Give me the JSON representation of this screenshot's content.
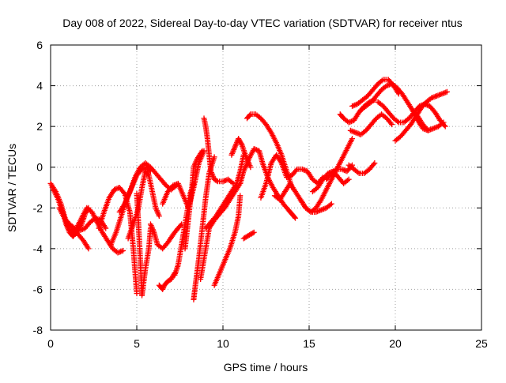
{
  "chart_data": {
    "type": "scatter",
    "title": "Day 008 of 2022, Sidereal Day-to-day VTEC variation (SDTVAR) for receiver ntus",
    "xlabel": "GPS time / hours",
    "ylabel": "SDTVAR / TECUs",
    "xlim": [
      0,
      25
    ],
    "ylim": [
      -8,
      6
    ],
    "x_ticks": [
      0,
      5,
      10,
      15,
      20,
      25
    ],
    "y_ticks": [
      -8,
      -6,
      -4,
      -2,
      0,
      2,
      4,
      6
    ],
    "grid": true,
    "marker": "+",
    "color": "#ff0000",
    "series": [
      {
        "x": [
          0.0,
          0.3,
          0.6,
          0.8,
          1.0,
          1.3,
          1.6,
          1.9,
          2.2
        ],
        "y": [
          -0.8,
          -1.2,
          -1.8,
          -2.4,
          -2.9,
          -3.1,
          -3.3,
          -3.6,
          -4.0
        ]
      },
      {
        "x": [
          0.1,
          0.4,
          0.7,
          0.9,
          1.1,
          1.3,
          1.5,
          1.8,
          2.0,
          2.2
        ],
        "y": [
          -1.0,
          -1.5,
          -2.2,
          -2.8,
          -3.2,
          -3.4,
          -3.2,
          -2.8,
          -2.3,
          -2.0
        ]
      },
      {
        "x": [
          0.5,
          0.8,
          1.1,
          1.4,
          1.7,
          2.0,
          2.3,
          2.6,
          2.9,
          3.2
        ],
        "y": [
          -2.0,
          -2.5,
          -2.8,
          -3.0,
          -3.1,
          -3.0,
          -2.7,
          -2.5,
          -2.6,
          -3.0
        ]
      },
      {
        "x": [
          1.2,
          1.5,
          1.8,
          2.1,
          2.4,
          2.7,
          3.0,
          3.3,
          3.6,
          3.9,
          4.2
        ],
        "y": [
          -3.3,
          -3.0,
          -2.5,
          -2.0,
          -2.2,
          -2.7,
          -3.2,
          -3.6,
          -4.0,
          -4.2,
          -4.1
        ]
      },
      {
        "x": [
          2.8,
          3.1,
          3.4,
          3.7,
          4.0,
          4.3,
          4.6,
          4.8,
          5.0
        ],
        "y": [
          -3.0,
          -2.2,
          -1.5,
          -1.1,
          -1.0,
          -1.3,
          -2.2,
          -4.0,
          -6.2
        ]
      },
      {
        "x": [
          3.5,
          3.8,
          4.1,
          4.4,
          4.7,
          5.0,
          5.3,
          5.6,
          5.8
        ],
        "y": [
          -3.8,
          -3.2,
          -2.4,
          -1.6,
          -1.0,
          -0.4,
          -0.1,
          0.0,
          -0.2
        ]
      },
      {
        "x": [
          4.0,
          4.3,
          4.6,
          4.9,
          5.2,
          5.5,
          5.8,
          6.1,
          6.4,
          6.7,
          7.0,
          7.3
        ],
        "y": [
          -2.2,
          -1.8,
          -1.2,
          -0.5,
          0.0,
          0.2,
          0.0,
          -0.3,
          -0.6,
          -0.9,
          -1.1,
          -0.9
        ]
      },
      {
        "x": [
          4.5,
          4.8,
          5.1,
          5.3,
          5.5,
          5.7,
          5.9,
          6.1,
          6.3
        ],
        "y": [
          -3.5,
          -2.8,
          -2.0,
          -1.0,
          -0.2,
          -0.4,
          -1.2,
          -2.0,
          -2.4
        ]
      },
      {
        "x": [
          5.0,
          5.1,
          5.2,
          5.3,
          5.5,
          5.7,
          5.8
        ],
        "y": [
          -1.3,
          -2.8,
          -4.5,
          -6.3,
          -5.0,
          -4.0,
          -3.0
        ]
      },
      {
        "x": [
          5.8,
          6.0,
          6.2,
          6.5,
          6.8,
          7.2,
          7.6
        ],
        "y": [
          -2.8,
          -3.2,
          -3.8,
          -4.0,
          -3.7,
          -3.2,
          -2.8
        ]
      },
      {
        "x": [
          6.3,
          6.5,
          6.6,
          6.8,
          7.0,
          7.2
        ],
        "y": [
          -5.8,
          -6.0,
          -5.8,
          -5.6,
          -5.5,
          -5.2
        ]
      },
      {
        "x": [
          6.5,
          6.8,
          7.1,
          7.4,
          7.7,
          8.0,
          8.3,
          8.6,
          8.9
        ],
        "y": [
          -1.8,
          -1.2,
          -0.9,
          -0.8,
          -1.4,
          -2.0,
          -1.0,
          0.2,
          0.8
        ]
      },
      {
        "x": [
          7.2,
          7.4,
          7.6,
          7.8,
          8.0,
          8.1,
          8.3
        ],
        "y": [
          -5.3,
          -4.8,
          -3.8,
          -2.8,
          -1.8,
          -1.3,
          -0.8
        ]
      },
      {
        "x": [
          7.8,
          8.0,
          8.2,
          8.3,
          8.5,
          8.8
        ],
        "y": [
          -4.0,
          -2.5,
          -1.0,
          0.0,
          0.4,
          0.8
        ]
      },
      {
        "x": [
          8.3,
          8.4,
          8.6,
          8.8,
          9.0,
          9.2,
          9.5
        ],
        "y": [
          -6.5,
          -5.8,
          -4.5,
          -3.0,
          -1.5,
          -0.3,
          0.5
        ]
      },
      {
        "x": [
          8.9,
          9.0,
          9.1,
          9.2,
          9.3,
          9.5,
          9.7,
          10.0,
          10.3,
          10.6
        ],
        "y": [
          2.4,
          2.0,
          1.4,
          0.6,
          -0.2,
          -0.6,
          -0.7,
          -0.7,
          -0.6,
          -0.8
        ]
      },
      {
        "x": [
          8.7,
          8.9,
          9.2,
          9.5,
          9.8,
          10.1,
          10.4,
          10.7,
          11.0
        ],
        "y": [
          -5.5,
          -4.5,
          -3.0,
          -2.6,
          -2.3,
          -2.0,
          -1.6,
          -1.2,
          -0.8
        ]
      },
      {
        "x": [
          9.0,
          9.3,
          9.6,
          9.9,
          10.2,
          10.5,
          10.8,
          11.0,
          11.2
        ],
        "y": [
          -3.0,
          -2.7,
          -2.4,
          -2.0,
          -1.6,
          -1.2,
          -0.8,
          -0.2,
          0.6
        ]
      },
      {
        "x": [
          9.5,
          9.8,
          10.1,
          10.4,
          10.7,
          10.9,
          11.0
        ],
        "y": [
          -5.8,
          -5.2,
          -4.6,
          -4.0,
          -3.2,
          -2.4,
          -1.4
        ]
      },
      {
        "x": [
          10.5,
          10.7,
          10.9,
          11.1,
          11.3,
          11.6
        ],
        "y": [
          0.6,
          1.0,
          1.4,
          1.1,
          0.6,
          0.0
        ]
      },
      {
        "x": [
          11.0,
          11.2,
          11.5,
          11.8,
          12.1,
          12.3,
          12.6,
          12.9,
          13.2,
          13.5,
          13.8,
          14.0,
          14.2
        ],
        "y": [
          -0.8,
          -0.2,
          0.4,
          0.9,
          0.8,
          0.2,
          -0.5,
          -1.0,
          -1.4,
          -1.8,
          -2.1,
          -2.3,
          -2.5
        ]
      },
      {
        "x": [
          11.2,
          11.4,
          11.6,
          11.8
        ],
        "y": [
          -3.5,
          -3.4,
          -3.3,
          -3.2
        ]
      },
      {
        "x": [
          11.4,
          11.6,
          11.9,
          12.2,
          12.5,
          12.8,
          13.1,
          13.4,
          13.7,
          14.0
        ],
        "y": [
          2.4,
          2.6,
          2.6,
          2.4,
          2.1,
          1.7,
          1.2,
          0.6,
          -0.2,
          -1.0
        ]
      },
      {
        "x": [
          12.2,
          12.5,
          12.8,
          13.1,
          13.4,
          13.7,
          14.0,
          14.3,
          14.6,
          14.9,
          15.2,
          15.5,
          15.8
        ],
        "y": [
          -1.5,
          -0.8,
          0.2,
          0.6,
          0.2,
          -0.5,
          -0.4,
          -0.1,
          -0.1,
          -0.2,
          -0.6,
          -0.8,
          -0.5
        ]
      },
      {
        "x": [
          13.0,
          13.3,
          13.6,
          13.9,
          14.2,
          14.5,
          14.8,
          15.1,
          15.4,
          15.7,
          16.0,
          16.3
        ],
        "y": [
          -1.4,
          -1.6,
          -1.2,
          -0.8,
          -1.2,
          -1.6,
          -2.0,
          -2.2,
          -2.2,
          -2.1,
          -2.0,
          -1.8
        ]
      },
      {
        "x": [
          14.5,
          14.8,
          15.1,
          15.4,
          15.7,
          16.0,
          16.3,
          16.6,
          16.9,
          17.2,
          17.5
        ],
        "y": [
          -1.6,
          -2.0,
          -2.2,
          -2.0,
          -1.6,
          -1.1,
          -0.6,
          -0.1,
          0.4,
          0.9,
          1.4
        ]
      },
      {
        "x": [
          15.2,
          15.5,
          15.8,
          16.1,
          16.4,
          16.7,
          17.0,
          17.3
        ],
        "y": [
          -1.2,
          -1.0,
          -0.6,
          -0.3,
          -0.2,
          -0.5,
          -0.8,
          -0.6
        ]
      },
      {
        "x": [
          16.0,
          16.3,
          16.6,
          16.9,
          17.2,
          17.5
        ],
        "y": [
          -0.6,
          -0.3,
          -0.1,
          -0.1,
          -0.2,
          0.1
        ]
      },
      {
        "x": [
          16.8,
          17.0,
          17.3,
          17.6,
          17.9,
          18.2,
          18.5,
          18.8
        ],
        "y": [
          2.6,
          2.4,
          2.2,
          2.3,
          2.7,
          3.0,
          3.2,
          3.3
        ]
      },
      {
        "x": [
          17.5,
          17.8,
          18.1,
          18.4,
          18.7,
          19.0,
          19.3,
          19.6,
          19.9,
          20.2
        ],
        "y": [
          3.0,
          3.1,
          3.3,
          3.5,
          3.8,
          4.1,
          4.3,
          4.3,
          4.0,
          3.6
        ]
      },
      {
        "x": [
          18.0,
          18.3,
          18.6,
          18.9,
          19.2,
          19.5,
          19.8,
          20.1,
          20.4,
          20.7,
          21.0,
          21.3,
          21.6,
          21.9
        ],
        "y": [
          2.8,
          3.0,
          3.2,
          3.5,
          3.8,
          4.0,
          4.1,
          3.9,
          3.6,
          3.2,
          2.8,
          2.3,
          1.9,
          1.8
        ]
      },
      {
        "x": [
          17.3,
          17.6,
          17.9,
          18.2,
          18.5,
          18.8
        ],
        "y": [
          0.1,
          -0.1,
          -0.3,
          -0.3,
          -0.1,
          0.2
        ]
      },
      {
        "x": [
          17.4,
          17.7,
          18.0,
          18.3,
          18.6,
          18.9,
          19.2,
          19.5,
          19.8
        ],
        "y": [
          1.8,
          1.7,
          1.6,
          1.8,
          2.1,
          2.4,
          2.6,
          2.4,
          2.1
        ]
      },
      {
        "x": [
          19.0,
          19.3,
          19.6,
          19.9,
          20.2,
          20.5,
          20.8,
          21.1,
          21.4,
          21.7,
          22.0,
          22.3,
          22.6,
          22.9
        ],
        "y": [
          3.2,
          3.0,
          2.7,
          2.4,
          2.2,
          2.2,
          2.4,
          2.7,
          3.0,
          3.1,
          3.0,
          2.7,
          2.3,
          2.0
        ]
      },
      {
        "x": [
          20.0,
          20.3,
          20.6,
          20.9,
          21.2,
          21.5,
          21.8,
          22.1,
          22.4,
          22.7,
          23.0
        ],
        "y": [
          1.3,
          1.5,
          1.8,
          2.1,
          2.5,
          2.9,
          3.2,
          3.4,
          3.5,
          3.6,
          3.7
        ]
      },
      {
        "x": [
          21.0,
          21.3,
          21.6,
          21.9,
          22.2,
          22.5,
          22.8
        ],
        "y": [
          2.8,
          2.5,
          2.1,
          1.8,
          1.9,
          2.0,
          2.2
        ]
      }
    ]
  }
}
